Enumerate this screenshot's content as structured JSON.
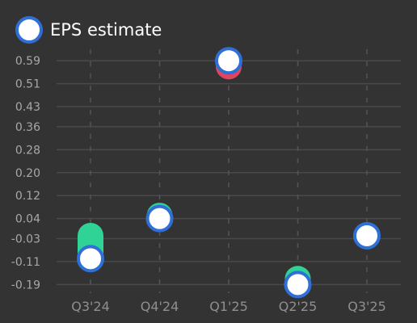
{
  "chart_data": {
    "type": "scatter",
    "title": "",
    "xlabel": "",
    "ylabel": "",
    "categories": [
      "Q3'24",
      "Q4'24",
      "Q1'25",
      "Q2'25",
      "Q3'25"
    ],
    "y_ticks": [
      "0.59",
      "0.51",
      "0.43",
      "0.36",
      "0.28",
      "0.20",
      "0.12",
      "0.04",
      "-0.03",
      "-0.11",
      "-0.19"
    ],
    "ylim": [
      -0.22,
      0.63
    ],
    "grid": true,
    "legend": {
      "position": "top-left",
      "entries": [
        "EPS estimate"
      ]
    },
    "series": [
      {
        "name": "EPS estimate",
        "values": [
          -0.1,
          0.04,
          0.59,
          -0.19,
          -0.02
        ]
      }
    ],
    "actuals": [
      {
        "from": -0.02,
        "to": -0.08
      },
      {
        "from": 0.05,
        "to": 0.05
      },
      {
        "from": 0.57,
        "to": 0.57
      },
      {
        "from": -0.17,
        "to": -0.17
      },
      null
    ],
    "colors": {
      "background": "#333333",
      "estimate_fill": "#ffffff",
      "estimate_stroke": "#2f6fd6",
      "beat": "#2fd395",
      "miss": "#e0455f"
    }
  }
}
